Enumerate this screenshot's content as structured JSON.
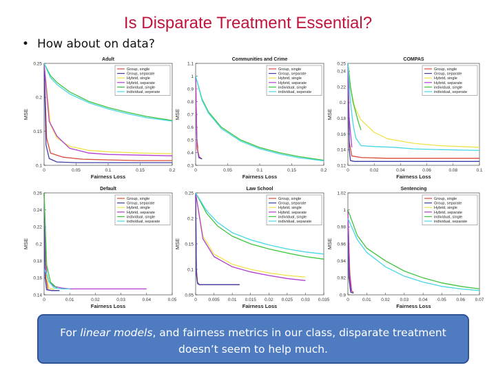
{
  "slide": {
    "title": "Is Disparate Treatment Essential?",
    "bullet_char": "•",
    "bullet": "How about on data?",
    "callout_pre": "For ",
    "callout_em": "linear models",
    "callout_post": ", and fairness metrics in our class, disparate treatment doesn’t seem to help much."
  },
  "colors": {
    "Group, single": "#d94b37",
    "Group, separate": "#3b3fa8",
    "Hybrid, single": "#f0e34a",
    "Hybrid, separate": "#b23fd1",
    "Individual, single": "#3ec43e",
    "Individual, separate": "#47d7e6"
  },
  "chart_data": [
    {
      "type": "line",
      "title": "Adult",
      "xlabel": "Fairness Loss",
      "ylabel": "MSE",
      "xlim": [
        0,
        0.2
      ],
      "ylim": [
        0.1,
        0.25
      ],
      "xticks": [
        0,
        0.05,
        0.1,
        0.15,
        0.2
      ],
      "xtick_labels": [
        "0",
        "0.05",
        "0.1",
        "0.15",
        "0.2"
      ],
      "yticks": [
        0.1,
        0.15,
        0.2,
        0.25
      ],
      "ytick_labels": [
        "0.1",
        "0.15",
        "0.2",
        "0.25"
      ],
      "legend": [
        "Group, single",
        "Group, separate",
        "Hybrid, single",
        "Hybrid, separate",
        "individual, single",
        "individual, seperate"
      ],
      "series": [
        {
          "name": "Group, single",
          "x": [
            0,
            0.004,
            0.01,
            0.03,
            0.06,
            0.1,
            0.15,
            0.2
          ],
          "y": [
            0.25,
            0.14,
            0.118,
            0.112,
            0.109,
            0.108,
            0.107,
            0.107
          ]
        },
        {
          "name": "Group, separate",
          "x": [
            0,
            0.003,
            0.008,
            0.02,
            0.05,
            0.1,
            0.15,
            0.2
          ],
          "y": [
            0.25,
            0.13,
            0.11,
            0.105,
            0.104,
            0.104,
            0.104,
            0.104
          ]
        },
        {
          "name": "Hybrid, single",
          "x": [
            0,
            0.01,
            0.02,
            0.04,
            0.07,
            0.1,
            0.15,
            0.2
          ],
          "y": [
            0.25,
            0.16,
            0.14,
            0.128,
            0.122,
            0.12,
            0.118,
            0.117
          ]
        },
        {
          "name": "Hybrid, separate",
          "x": [
            0,
            0.008,
            0.02,
            0.04,
            0.07,
            0.1,
            0.15,
            0.2
          ],
          "y": [
            0.25,
            0.165,
            0.143,
            0.125,
            0.118,
            0.116,
            0.115,
            0.114
          ]
        },
        {
          "name": "Individual, single",
          "x": [
            0,
            0.01,
            0.02,
            0.04,
            0.07,
            0.1,
            0.13,
            0.16,
            0.2
          ],
          "y": [
            0.25,
            0.232,
            0.222,
            0.208,
            0.194,
            0.185,
            0.178,
            0.172,
            0.166
          ]
        },
        {
          "name": "Individual, separate",
          "x": [
            0,
            0.01,
            0.02,
            0.04,
            0.07,
            0.1,
            0.13,
            0.16,
            0.2
          ],
          "y": [
            0.25,
            0.229,
            0.219,
            0.205,
            0.192,
            0.183,
            0.176,
            0.17,
            0.165
          ]
        }
      ]
    },
    {
      "type": "line",
      "title": "Communities and Crime",
      "xlabel": "Fairness Loss",
      "ylabel": "MSE",
      "xlim": [
        0,
        0.2
      ],
      "ylim": [
        0.3,
        1.1
      ],
      "xticks": [
        0,
        0.05,
        0.1,
        0.15,
        0.2
      ],
      "xtick_labels": [
        "0",
        "0.05",
        "0.1",
        "0.15",
        "0.2"
      ],
      "yticks": [
        0.3,
        0.4,
        0.5,
        0.6,
        0.7,
        0.8,
        0.9,
        1,
        1.1
      ],
      "ytick_labels": [
        "0.3",
        "0.4",
        "0.5",
        "0.6",
        "0.7",
        "0.8",
        "0.9",
        "1",
        "1.1"
      ],
      "legend": [
        "Group, single",
        "Group, separate",
        "Hybrid, single",
        "Hybrid, separate",
        "individual, single",
        "individual, seperate"
      ],
      "series": [
        {
          "name": "Group, single",
          "x": [
            0,
            0.002,
            0.005,
            0.01
          ],
          "y": [
            1.0,
            0.5,
            0.37,
            0.35
          ]
        },
        {
          "name": "Group, separate",
          "x": [
            0,
            0.002,
            0.005,
            0.01
          ],
          "y": [
            1.0,
            0.45,
            0.36,
            0.35
          ]
        },
        {
          "name": "Hybrid, single",
          "x": [
            0,
            0.002,
            0.006
          ],
          "y": [
            1.0,
            0.45,
            0.36
          ]
        },
        {
          "name": "Hybrid, separate",
          "x": [
            0,
            0.002,
            0.006
          ],
          "y": [
            1.0,
            0.43,
            0.36
          ]
        },
        {
          "name": "Individual, single",
          "x": [
            0,
            0.01,
            0.02,
            0.04,
            0.07,
            0.1,
            0.13,
            0.16,
            0.2
          ],
          "y": [
            1.0,
            0.82,
            0.72,
            0.6,
            0.5,
            0.44,
            0.4,
            0.37,
            0.34
          ]
        },
        {
          "name": "Individual, separate",
          "x": [
            0,
            0.01,
            0.02,
            0.04,
            0.07,
            0.1,
            0.13,
            0.16,
            0.2
          ],
          "y": [
            1.0,
            0.81,
            0.71,
            0.59,
            0.49,
            0.43,
            0.39,
            0.36,
            0.335
          ]
        }
      ]
    },
    {
      "type": "line",
      "title": "COMPAS",
      "xlabel": "Fairness Loss",
      "ylabel": "MSE",
      "xlim": [
        0,
        0.1
      ],
      "ylim": [
        0.12,
        0.25
      ],
      "xticks": [
        0,
        0.02,
        0.04,
        0.06,
        0.08,
        0.1
      ],
      "xtick_labels": [
        "0",
        "0.02",
        "0.04",
        "0.06",
        "0.08",
        "0.1"
      ],
      "yticks": [
        0.12,
        0.14,
        0.16,
        0.18,
        0.2,
        0.22,
        0.24
      ],
      "ytick_labels": [
        "0.12",
        "0.14",
        "0.16",
        "0.18",
        "0.2",
        "0.22",
        "0.24"
      ],
      "ytick_top_label": "0.25",
      "legend": [
        "Group, single",
        "Group, separate",
        "Hybrid, single",
        "Hybrid, separate",
        "individual, single",
        "individual, seperate"
      ],
      "series": [
        {
          "name": "Group, single",
          "x": [
            0,
            0.001,
            0.003,
            0.01,
            0.03,
            0.06,
            0.1
          ],
          "y": [
            0.25,
            0.15,
            0.132,
            0.13,
            0.129,
            0.129,
            0.129
          ]
        },
        {
          "name": "Group, separate",
          "x": [
            0,
            0.001,
            0.002,
            0.005,
            0.02,
            0.05,
            0.1
          ],
          "y": [
            0.25,
            0.14,
            0.126,
            0.125,
            0.125,
            0.125,
            0.125
          ]
        },
        {
          "name": "Hybrid, single",
          "x": [
            0,
            0.002,
            0.005,
            0.01,
            0.02,
            0.03,
            0.05,
            0.07,
            0.1
          ],
          "y": [
            0.25,
            0.22,
            0.195,
            0.178,
            0.162,
            0.154,
            0.148,
            0.145,
            0.143
          ]
        },
        {
          "name": "Hybrid, separate",
          "x": [
            0,
            0.001,
            0.003
          ],
          "y": [
            0.25,
            0.18,
            0.143
          ]
        },
        {
          "name": "Individual, single",
          "x": [
            0,
            0.002,
            0.004,
            0.008,
            0.01
          ],
          "y": [
            0.25,
            0.22,
            0.2,
            0.175,
            0.165
          ]
        },
        {
          "name": "Individual, separate",
          "x": [
            0,
            0.002,
            0.004,
            0.006,
            0.01,
            0.02,
            0.035,
            0.05,
            0.07,
            0.1
          ],
          "y": [
            0.25,
            0.2,
            0.172,
            0.155,
            0.145,
            0.144,
            0.143,
            0.141,
            0.14,
            0.139
          ]
        }
      ]
    },
    {
      "type": "line",
      "title": "Default",
      "xlabel": "Fairness Loss",
      "ylabel": "MSE",
      "xlim": [
        0,
        0.05
      ],
      "ylim": [
        0.14,
        0.26
      ],
      "xticks": [
        0,
        0.01,
        0.02,
        0.03,
        0.04,
        0.05
      ],
      "xtick_labels": [
        "0",
        "0.01",
        "0.02",
        "0.03",
        "0.04",
        "0.05"
      ],
      "yticks": [
        0.14,
        0.16,
        0.18,
        0.2,
        0.22,
        0.24,
        0.26
      ],
      "ytick_labels": [
        "0.14",
        "0.16",
        "0.18",
        "0.2",
        "0.22",
        "0.24",
        "0.26"
      ],
      "legend": [
        "Group, single",
        "Group, separate",
        "Hybrid, single",
        "Hybrid, separate",
        "individual, single",
        "individual, separate"
      ],
      "series": [
        {
          "name": "Group, single",
          "x": [
            0,
            0.0005,
            0.0015,
            0.003,
            0.006
          ],
          "y": [
            0.26,
            0.165,
            0.146,
            0.145,
            0.145
          ]
        },
        {
          "name": "Group, separate",
          "x": [
            0,
            0.0004,
            0.001,
            0.003,
            0.006
          ],
          "y": [
            0.26,
            0.16,
            0.146,
            0.145,
            0.145
          ]
        },
        {
          "name": "Hybrid, single",
          "x": [
            0,
            0.001,
            0.002,
            0.004
          ],
          "y": [
            0.26,
            0.16,
            0.148,
            0.146
          ]
        },
        {
          "name": "Hybrid, separate",
          "x": [
            0,
            0.001,
            0.002,
            0.004,
            0.007,
            0.01,
            0.02,
            0.03,
            0.04
          ],
          "y": [
            0.26,
            0.165,
            0.155,
            0.15,
            0.148,
            0.147,
            0.147,
            0.147,
            0.147
          ]
        },
        {
          "name": "Individual, single",
          "x": [
            0,
            0.001,
            0.0025,
            0.005
          ],
          "y": [
            0.26,
            0.175,
            0.155,
            0.148
          ]
        },
        {
          "name": "Individual, separate",
          "x": [
            0,
            0.001,
            0.002,
            0.004,
            0.007,
            0.01
          ],
          "y": [
            0.17,
            0.165,
            0.155,
            0.148,
            0.147,
            0.147
          ]
        }
      ]
    },
    {
      "type": "line",
      "title": "Law School",
      "xlabel": "Fairness Loss",
      "ylabel": "MSE",
      "xlim": [
        0,
        0.035
      ],
      "ylim": [
        0.05,
        0.25
      ],
      "xticks": [
        0,
        0.005,
        0.01,
        0.015,
        0.02,
        0.025,
        0.03,
        0.035
      ],
      "xtick_labels": [
        "0",
        "0.005",
        "0.01",
        "0.015",
        "0.02",
        "0.025",
        "0.03",
        "0.035"
      ],
      "yticks": [
        0.05,
        0.1,
        0.15,
        0.2,
        0.25
      ],
      "ytick_labels": [
        "0.05",
        "0.1",
        "0.15",
        "0.2",
        "0.25"
      ],
      "legend": [
        "Group, single",
        "Group, separate",
        "Hybrid, single",
        "Hybrid, separate",
        "individual, single",
        "individual, separate"
      ],
      "series": [
        {
          "name": "Group, single",
          "x": [
            0,
            0.0002,
            0.0005,
            0.001,
            0.005,
            0.012
          ],
          "y": [
            0.25,
            0.1,
            0.075,
            0.07,
            0.07,
            0.07
          ]
        },
        {
          "name": "Group, separate",
          "x": [
            0,
            0.0002,
            0.0005,
            0.001,
            0.005,
            0.012
          ],
          "y": [
            0.25,
            0.09,
            0.072,
            0.07,
            0.07,
            0.07
          ]
        },
        {
          "name": "Hybrid, single",
          "x": [
            0,
            0.002,
            0.005,
            0.01,
            0.015,
            0.02,
            0.025,
            0.03
          ],
          "y": [
            0.25,
            0.165,
            0.13,
            0.11,
            0.1,
            0.093,
            0.088,
            0.085
          ]
        },
        {
          "name": "Hybrid, separate",
          "x": [
            0,
            0.002,
            0.005,
            0.01,
            0.015,
            0.02,
            0.025,
            0.03
          ],
          "y": [
            0.25,
            0.16,
            0.125,
            0.105,
            0.095,
            0.088,
            0.082,
            0.078
          ]
        },
        {
          "name": "Individual, single",
          "x": [
            0,
            0.003,
            0.006,
            0.01,
            0.015,
            0.02,
            0.025,
            0.03,
            0.035
          ],
          "y": [
            0.25,
            0.21,
            0.185,
            0.165,
            0.15,
            0.14,
            0.132,
            0.125,
            0.12
          ]
        },
        {
          "name": "Individual, separate",
          "x": [
            0,
            0.003,
            0.006,
            0.01,
            0.015,
            0.02,
            0.025,
            0.03,
            0.035
          ],
          "y": [
            0.25,
            0.215,
            0.192,
            0.172,
            0.158,
            0.148,
            0.14,
            0.134,
            0.13
          ]
        }
      ]
    },
    {
      "type": "line",
      "title": "Sentencing",
      "xlabel": "Fairness Loss",
      "ylabel": "MSE",
      "xlim": [
        0,
        0.07
      ],
      "ylim": [
        0.9,
        1.02
      ],
      "xticks": [
        0,
        0.01,
        0.02,
        0.03,
        0.04,
        0.05,
        0.06,
        0.07
      ],
      "xtick_labels": [
        "0",
        "0.01",
        "0.02",
        "0.03",
        "0.04",
        "0.05",
        "0.06",
        "0.07"
      ],
      "yticks": [
        0.9,
        0.92,
        0.94,
        0.96,
        0.98,
        1,
        1.02
      ],
      "ytick_labels": [
        "0.9",
        "0.92",
        "0.94",
        "0.96",
        "0.98",
        "1",
        "1.02"
      ],
      "legend": [
        "Group, single",
        "Group, separate",
        "Hybrid, single",
        "Hybrid, separate",
        "individual, single",
        "individual, separate"
      ],
      "series": [
        {
          "name": "Group, single",
          "x": [
            0,
            0.0005,
            0.0015,
            0.003
          ],
          "y": [
            1.0,
            0.93,
            0.905,
            0.903
          ]
        },
        {
          "name": "Group, separate",
          "x": [
            0,
            0.0005,
            0.0015,
            0.003
          ],
          "y": [
            1.0,
            0.92,
            0.903,
            0.902
          ]
        },
        {
          "name": "Hybrid, single",
          "x": [
            0,
            0.001,
            0.002
          ],
          "y": [
            1.0,
            0.93,
            0.905
          ]
        },
        {
          "name": "Hybrid, separate",
          "x": [
            0,
            0.001,
            0.002
          ],
          "y": [
            1.0,
            0.925,
            0.904
          ]
        },
        {
          "name": "Individual, single",
          "x": [
            0,
            0.005,
            0.01,
            0.02,
            0.03,
            0.04,
            0.05,
            0.06,
            0.07
          ],
          "y": [
            1.0,
            0.97,
            0.955,
            0.94,
            0.928,
            0.92,
            0.914,
            0.91,
            0.907
          ]
        },
        {
          "name": "Individual, separate",
          "x": [
            0,
            0.005,
            0.01,
            0.02,
            0.03,
            0.04,
            0.05,
            0.06,
            0.07
          ],
          "y": [
            0.99,
            0.965,
            0.95,
            0.933,
            0.922,
            0.915,
            0.91,
            0.907,
            0.905
          ]
        }
      ]
    }
  ]
}
